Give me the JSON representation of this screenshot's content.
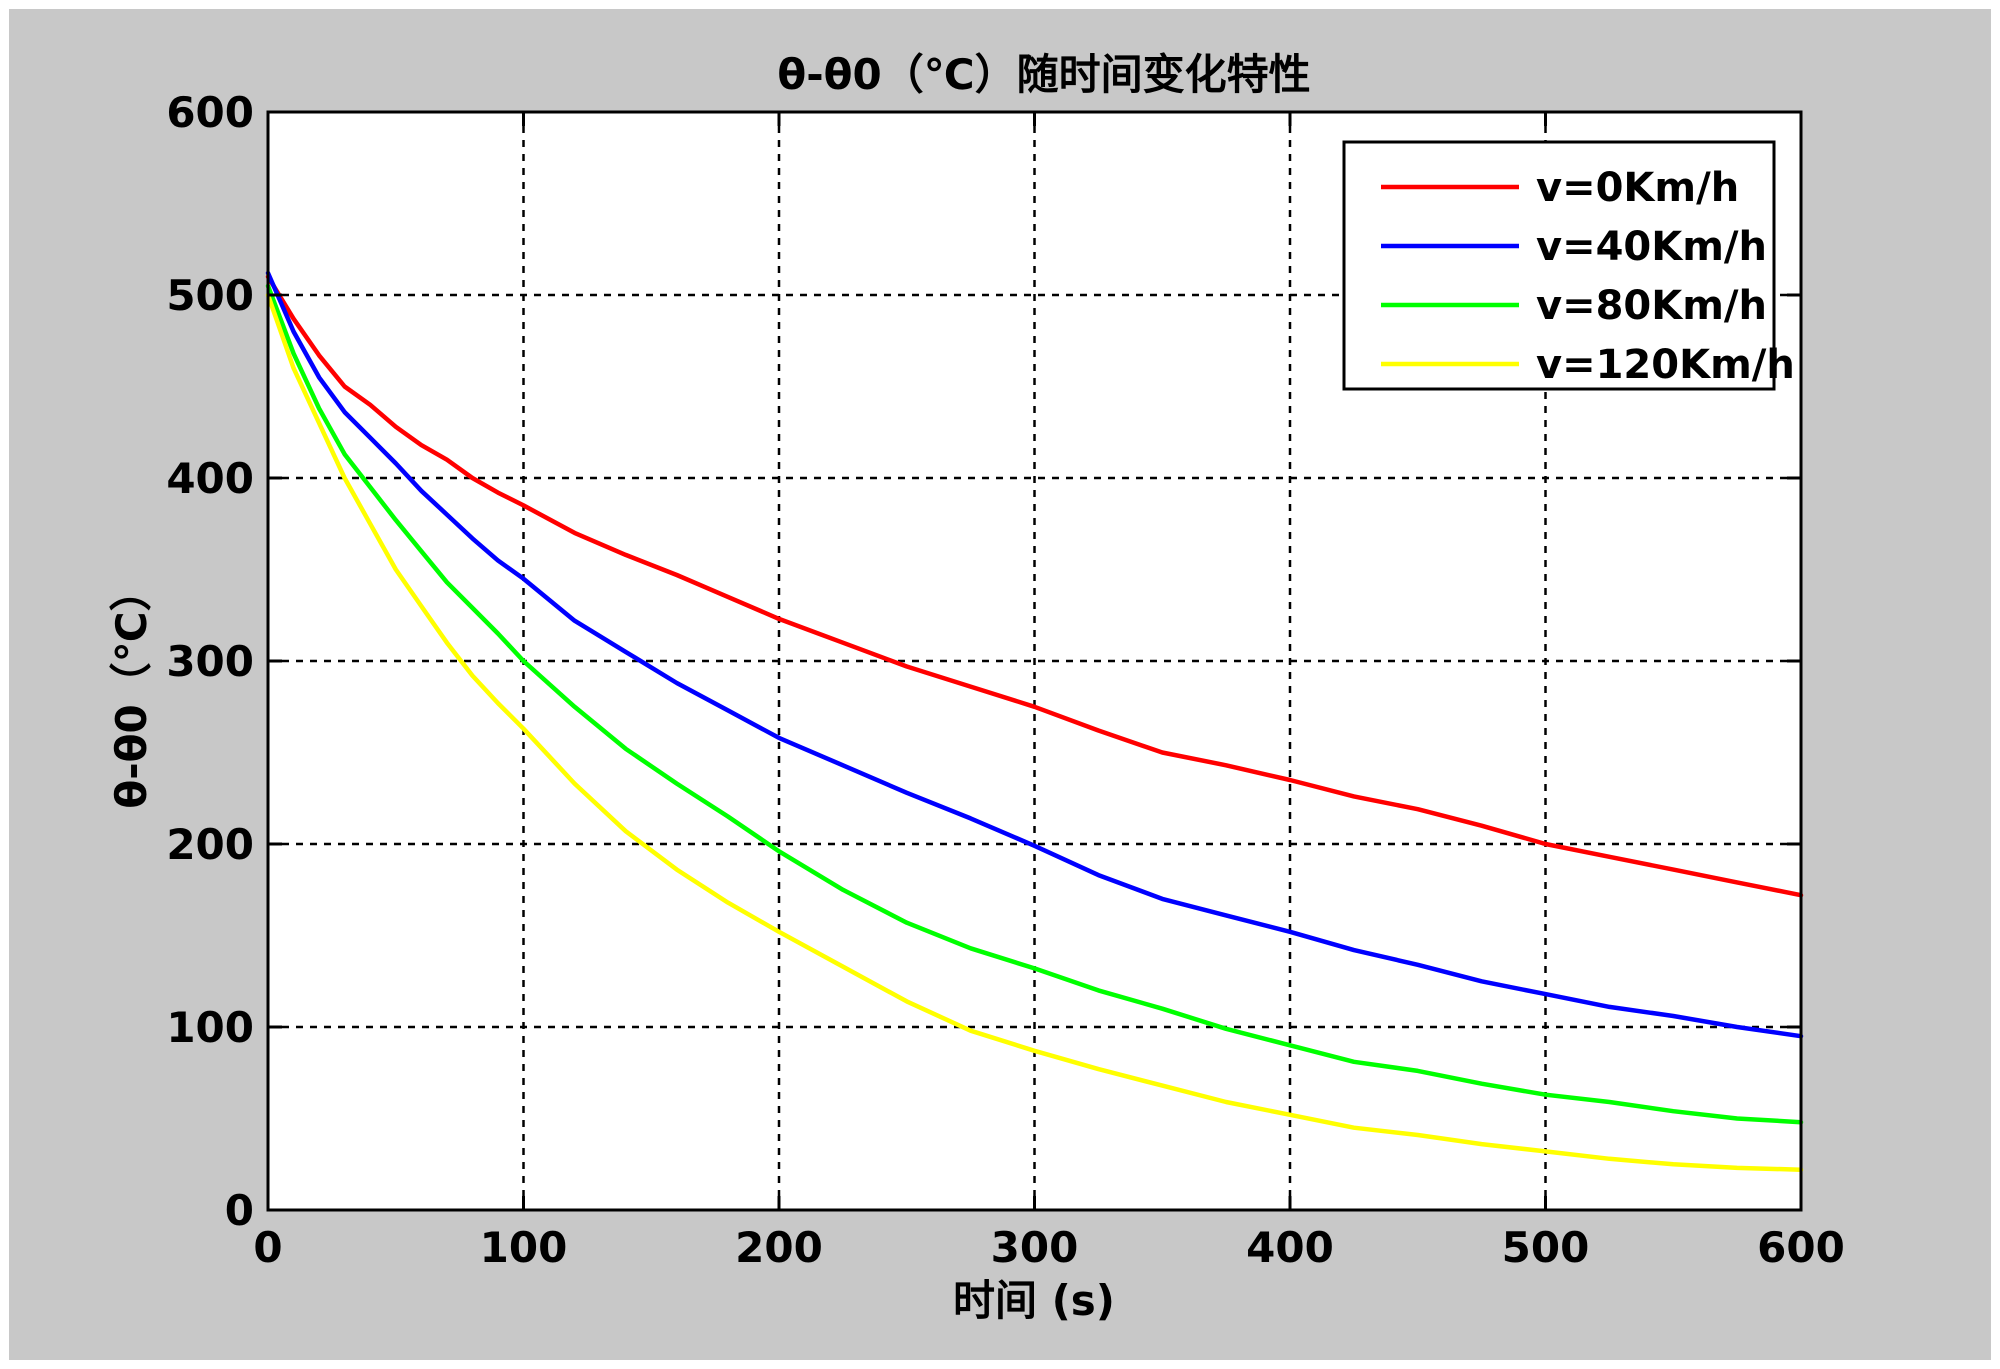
{
  "chart_data": {
    "type": "line",
    "title": "θ-θ0（℃）随时间变化特性",
    "xlabel": "时间 (s)",
    "ylabel": "θ-θ0（℃）",
    "xlim": [
      0,
      600
    ],
    "ylim": [
      0,
      600
    ],
    "xticks": [
      0,
      100,
      200,
      300,
      400,
      500,
      600
    ],
    "yticks": [
      0,
      100,
      200,
      300,
      400,
      500,
      600
    ],
    "grid": true,
    "legend_position": "top-right",
    "x": [
      0,
      10,
      20,
      30,
      40,
      50,
      60,
      70,
      80,
      90,
      100,
      120,
      140,
      160,
      180,
      200,
      225,
      250,
      275,
      300,
      325,
      350,
      375,
      400,
      425,
      450,
      475,
      500,
      525,
      550,
      575,
      600
    ],
    "series": [
      {
        "name": "v=0Km/h",
        "color": "#ff0000",
        "values": [
          510,
          487,
          467,
          450,
          440,
          428,
          418,
          410,
          400,
          392,
          385,
          370,
          358,
          347,
          335,
          323,
          310,
          297,
          286,
          275,
          262,
          250,
          243,
          235,
          226,
          219,
          210,
          200,
          193,
          186,
          179,
          172
        ]
      },
      {
        "name": "v=40Km/h",
        "color": "#0000ff",
        "values": [
          512,
          480,
          455,
          436,
          422,
          408,
          393,
          380,
          367,
          355,
          345,
          322,
          305,
          288,
          273,
          258,
          243,
          228,
          214,
          199,
          183,
          170,
          161,
          152,
          142,
          134,
          125,
          118,
          111,
          106,
          100,
          95
        ]
      },
      {
        "name": "v=80Km/h",
        "color": "#00ff00",
        "values": [
          505,
          468,
          438,
          413,
          395,
          377,
          360,
          343,
          329,
          315,
          300,
          275,
          252,
          233,
          215,
          196,
          175,
          157,
          143,
          132,
          120,
          110,
          99,
          90,
          81,
          76,
          69,
          63,
          59,
          54,
          50,
          48
        ]
      },
      {
        "name": "v=120Km/h",
        "color": "#ffff00",
        "values": [
          500,
          460,
          430,
          400,
          375,
          350,
          330,
          310,
          292,
          277,
          263,
          233,
          207,
          186,
          168,
          152,
          133,
          114,
          98,
          87,
          77,
          68,
          59,
          52,
          45,
          41,
          36,
          32,
          28,
          25,
          23,
          22
        ]
      }
    ]
  }
}
